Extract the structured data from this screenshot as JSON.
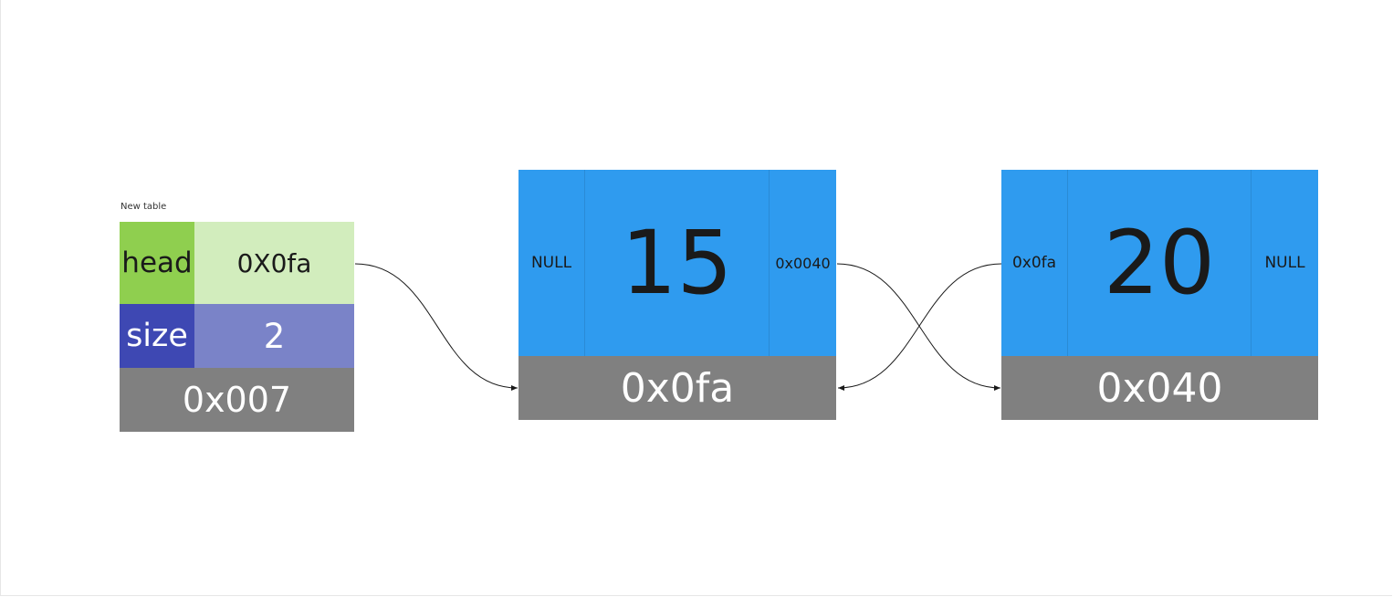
{
  "colors": {
    "head_key_bg": "#8fcf4f",
    "head_value_bg": "#d2edbd",
    "size_key_bg": "#3e48b3",
    "size_value_bg": "#7a83c8",
    "address_bg": "#808080",
    "node_bg": "#2f9bef",
    "connector": "#1a1a1a"
  },
  "table": {
    "caption": "New table",
    "head_label": "head",
    "head_value": "0X0fa",
    "size_label": "size",
    "size_value": "2",
    "address": "0x007"
  },
  "nodes": [
    {
      "prev": "NULL",
      "data": "15",
      "next": "0x0040",
      "address": "0x0fa"
    },
    {
      "prev": "0x0fa",
      "data": "20",
      "next": "NULL",
      "address": "0x040"
    }
  ]
}
